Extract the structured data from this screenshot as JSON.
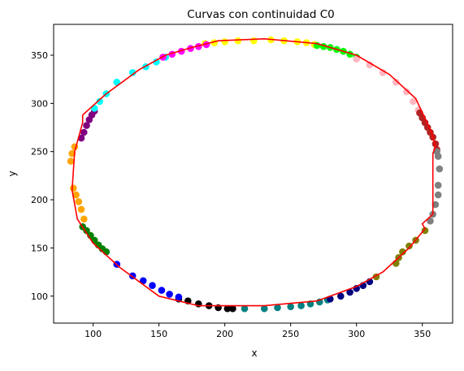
{
  "chart_data": {
    "type": "scatter",
    "title": "Curvas con continuidad C0",
    "xlabel": "x",
    "ylabel": "y",
    "xlim": [
      70,
      373
    ],
    "ylim": [
      72,
      382
    ],
    "xticks": [
      100,
      150,
      200,
      250,
      300,
      350
    ],
    "yticks": [
      100,
      150,
      200,
      250,
      300,
      350
    ],
    "grid": false,
    "series": [
      {
        "color": "#ffff00",
        "points": [
          [
            185,
            362
          ],
          [
            192,
            363
          ],
          [
            200,
            364
          ],
          [
            210,
            365
          ],
          [
            222,
            365
          ],
          [
            235,
            366
          ],
          [
            245,
            365
          ],
          [
            255,
            364
          ],
          [
            262,
            363
          ],
          [
            268,
            361
          ]
        ]
      },
      {
        "color": "#00ff00",
        "points": [
          [
            270,
            360
          ],
          [
            275,
            359
          ],
          [
            280,
            358
          ],
          [
            285,
            356
          ],
          [
            290,
            354
          ],
          [
            295,
            351
          ],
          [
            300,
            348
          ]
        ]
      },
      {
        "color": "#ffb6c1",
        "points": [
          [
            300,
            346
          ],
          [
            310,
            340
          ],
          [
            320,
            332
          ],
          [
            330,
            322
          ],
          [
            338,
            312
          ],
          [
            343,
            302
          ],
          [
            347,
            293
          ]
        ]
      },
      {
        "color": "#b22222",
        "points": [
          [
            348,
            290
          ],
          [
            350,
            285
          ],
          [
            352,
            280
          ],
          [
            354,
            275
          ],
          [
            356,
            270
          ],
          [
            358,
            265
          ],
          [
            360,
            258
          ],
          [
            361,
            252
          ]
        ]
      },
      {
        "color": "#808080",
        "points": [
          [
            361,
            250
          ],
          [
            362,
            245
          ],
          [
            363,
            232
          ],
          [
            362,
            215
          ],
          [
            362,
            205
          ],
          [
            360,
            195
          ],
          [
            358,
            185
          ],
          [
            356,
            178
          ]
        ]
      },
      {
        "color": "#808000",
        "points": [
          [
            352,
            168
          ],
          [
            345,
            158
          ],
          [
            340,
            152
          ],
          [
            335,
            146
          ],
          [
            332,
            140
          ],
          [
            330,
            134
          ],
          [
            315,
            120
          ]
        ]
      },
      {
        "color": "#008080",
        "points": [
          [
            215,
            87
          ],
          [
            230,
            87
          ],
          [
            240,
            88
          ],
          [
            250,
            89
          ],
          [
            258,
            90
          ],
          [
            265,
            92
          ],
          [
            272,
            94
          ],
          [
            278,
            96
          ]
        ]
      },
      {
        "color": "#000080",
        "points": [
          [
            280,
            97
          ],
          [
            288,
            100
          ],
          [
            295,
            104
          ],
          [
            300,
            108
          ],
          [
            305,
            111
          ],
          [
            310,
            115
          ]
        ]
      },
      {
        "color": "#000000",
        "points": [
          [
            165,
            97
          ],
          [
            172,
            95
          ],
          [
            180,
            92
          ],
          [
            188,
            90
          ],
          [
            195,
            88
          ],
          [
            202,
            87
          ],
          [
            206,
            87
          ]
        ]
      },
      {
        "color": "#0000ff",
        "points": [
          [
            118,
            133
          ],
          [
            130,
            121
          ],
          [
            138,
            116
          ],
          [
            145,
            111
          ],
          [
            152,
            106
          ],
          [
            158,
            102
          ],
          [
            165,
            99
          ]
        ]
      },
      {
        "color": "#008000",
        "points": [
          [
            92,
            172
          ],
          [
            95,
            168
          ],
          [
            98,
            163
          ],
          [
            101,
            158
          ],
          [
            104,
            153
          ],
          [
            107,
            149
          ],
          [
            110,
            146
          ]
        ]
      },
      {
        "color": "#ffa500",
        "points": [
          [
            83,
            240
          ],
          [
            84,
            248
          ],
          [
            86,
            255
          ],
          [
            85,
            212
          ],
          [
            87,
            205
          ],
          [
            89,
            198
          ],
          [
            91,
            190
          ],
          [
            93,
            180
          ]
        ]
      },
      {
        "color": "#800080",
        "points": [
          [
            91,
            264
          ],
          [
            93,
            270
          ],
          [
            95,
            277
          ],
          [
            97,
            283
          ],
          [
            99,
            288
          ],
          [
            101,
            292
          ]
        ]
      },
      {
        "color": "#00ffff",
        "points": [
          [
            101,
            295
          ],
          [
            105,
            302
          ],
          [
            110,
            310
          ],
          [
            118,
            322
          ],
          [
            130,
            332
          ],
          [
            140,
            338
          ],
          [
            148,
            343
          ],
          [
            155,
            348
          ]
        ]
      },
      {
        "color": "#ff00ff",
        "points": [
          [
            153,
            348
          ],
          [
            160,
            351
          ],
          [
            167,
            354
          ],
          [
            174,
            357
          ],
          [
            180,
            359
          ],
          [
            186,
            361
          ]
        ]
      }
    ],
    "curve": {
      "color": "#ff0000",
      "points": [
        [
          92,
          288
        ],
        [
          110,
          310
        ],
        [
          135,
          335
        ],
        [
          155,
          350
        ],
        [
          175,
          358
        ],
        [
          195,
          365
        ],
        [
          230,
          367
        ],
        [
          270,
          362
        ],
        [
          300,
          350
        ],
        [
          325,
          330
        ],
        [
          345,
          305
        ],
        [
          357,
          270
        ],
        [
          360,
          255
        ],
        [
          358,
          248
        ],
        [
          358,
          210
        ],
        [
          358,
          185
        ],
        [
          350,
          175
        ],
        [
          352,
          170
        ],
        [
          340,
          150
        ],
        [
          320,
          125
        ],
        [
          300,
          110
        ],
        [
          270,
          95
        ],
        [
          230,
          90
        ],
        [
          180,
          90
        ],
        [
          150,
          100
        ],
        [
          120,
          130
        ],
        [
          100,
          155
        ],
        [
          88,
          180
        ],
        [
          84,
          210
        ],
        [
          86,
          250
        ],
        [
          92,
          280
        ],
        [
          92,
          288
        ]
      ]
    }
  }
}
